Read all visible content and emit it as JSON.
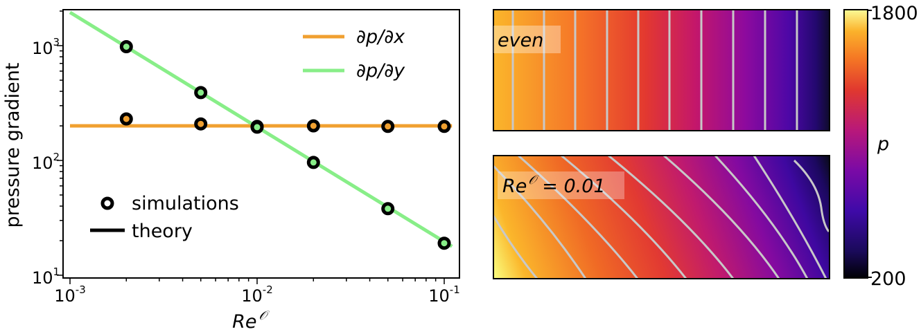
{
  "chart_data": [
    {
      "type": "line",
      "title": "",
      "xlabel": "Re",
      "xlabel_superscript": "𝒪",
      "ylabel": "pressure gradient",
      "xscale": "log",
      "yscale": "log",
      "xlim": [
        0.001,
        0.11
      ],
      "ylim": [
        10,
        2000
      ],
      "xticks": [
        {
          "value": 0.001,
          "base": "10",
          "exp": "-3"
        },
        {
          "value": 0.01,
          "base": "10",
          "exp": "-2"
        },
        {
          "value": 0.1,
          "base": "10",
          "exp": "-1"
        }
      ],
      "yticks": [
        {
          "value": 10,
          "base": "10",
          "exp": "1"
        },
        {
          "value": 100,
          "base": "10",
          "exp": "2"
        },
        {
          "value": 1000,
          "base": "10",
          "exp": "3"
        }
      ],
      "series": [
        {
          "name": "∂p/∂x",
          "color": "#f0a030",
          "theory": {
            "x": [
              0.001,
              0.11
            ],
            "y": [
              200,
              200
            ]
          },
          "simulations": {
            "x": [
              0.002,
              0.005,
              0.01,
              0.02,
              0.05,
              0.1
            ],
            "y": [
              230,
              208,
              198,
              200,
              198,
              198
            ]
          }
        },
        {
          "name": "∂p/∂y",
          "color": "#88ee88",
          "theory": {
            "x": [
              0.001,
              0.11
            ],
            "y": [
              1950,
              17.8
            ]
          },
          "simulations": {
            "x": [
              0.002,
              0.005,
              0.01,
              0.02,
              0.05,
              0.1
            ],
            "y": [
              980,
              390,
              195,
              96,
              38,
              19
            ]
          }
        }
      ],
      "legend": {
        "position": "top-right",
        "entries": [
          "∂p/∂x",
          "∂p/∂y"
        ]
      },
      "marker_legend": {
        "position": "bottom-left",
        "entries": [
          {
            "kind": "marker",
            "label": "simulations"
          },
          {
            "kind": "line",
            "label": "theory"
          }
        ]
      }
    },
    {
      "type": "heatmap",
      "colormap": "plasma-like",
      "colorbar": {
        "label": "p",
        "min": 200,
        "max": 1800,
        "min_label": "200",
        "max_label": "1800"
      },
      "panels": [
        {
          "label": "even",
          "pressure_left": 1750,
          "pressure_right": 220,
          "isolines": "vertical"
        },
        {
          "label_prefix": "Re",
          "label_superscript": "𝒪",
          "label_suffix": " = 0.01",
          "pressure_corner_low_left": 1800,
          "pressure_corner_top_right": 200,
          "isolines": "tilted"
        }
      ]
    }
  ]
}
